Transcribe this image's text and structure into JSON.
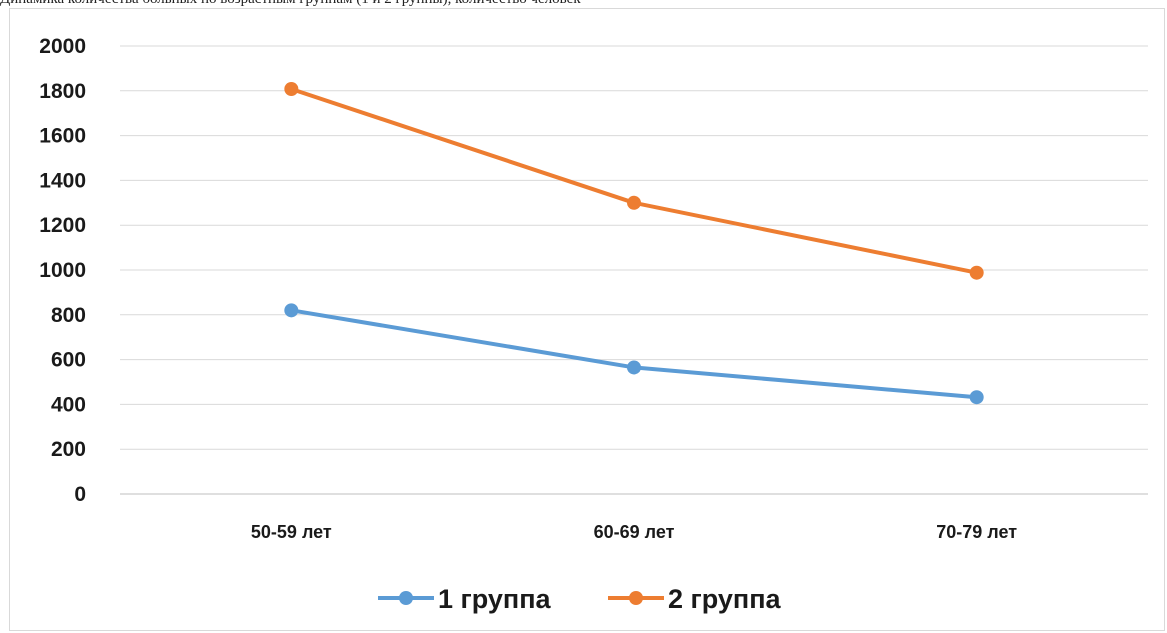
{
  "caption": "Динамика количества больных по возрастным группам (1 и 2 группы), количество человек",
  "chart_data": {
    "type": "line",
    "categories": [
      "50-59 лет",
      "60-69 лет",
      "70-79 лет"
    ],
    "series": [
      {
        "name": "1 группа",
        "values": [
          820,
          565,
          432
        ],
        "color": "#5b9bd5"
      },
      {
        "name": "2 группа",
        "values": [
          1808,
          1300,
          988
        ],
        "color": "#ed7d31"
      }
    ],
    "y_ticks": [
      "0",
      "200",
      "400",
      "600",
      "800",
      "1000",
      "1200",
      "1400",
      "1600",
      "1800",
      "2000"
    ],
    "ylim": [
      0,
      2000
    ],
    "grid": true,
    "legend_position": "bottom"
  }
}
